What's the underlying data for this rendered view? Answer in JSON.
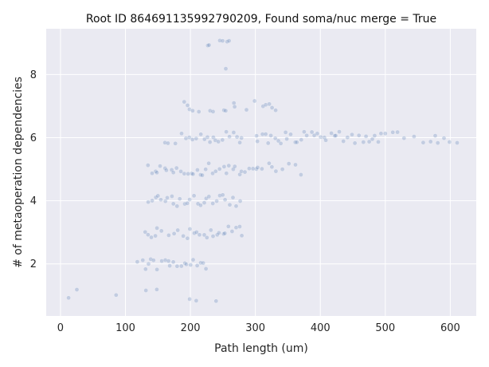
{
  "chart_data": {
    "type": "scatter",
    "title": "Root ID 864691135992790209, Found soma/nuc merge = True",
    "xlabel": "Path length (um)",
    "ylabel": "# of metaoperation dependencies",
    "xlim": [
      -22,
      640
    ],
    "ylim": [
      0.35,
      9.45
    ],
    "xticks": [
      0,
      100,
      200,
      300,
      400,
      500,
      600
    ],
    "yticks": [
      2,
      4,
      6,
      8
    ],
    "grid": true,
    "colors": {
      "background": "#eaeaf2",
      "grid": "#ffffff",
      "point": "#4c72b0"
    },
    "point_alpha": 0.25,
    "series": [
      {
        "values_by_level": [
          {
            "level": 1,
            "x": [
              12,
              25,
              85,
              130,
              150,
              200,
              207,
              240
            ]
          },
          {
            "level": 2,
            "x": [
              120,
              125,
              130,
              135,
              140,
              145,
              150,
              155,
              160,
              165,
              170,
              175,
              180,
              185,
              190,
              195,
              200,
              205,
              210,
              215,
              220,
              225
            ]
          },
          {
            "level": 3,
            "x": [
              130,
              135,
              140,
              145,
              150,
              155,
              165,
              175,
              180,
              190,
              195,
              200,
              205,
              210,
              215,
              220,
              225,
              230,
              235,
              240,
              245,
              250,
              255,
              260,
              265,
              270,
              275,
              280
            ]
          },
          {
            "level": 4,
            "x": [
              135,
              140,
              145,
              150,
              155,
              160,
              165,
              170,
              175,
              180,
              185,
              190,
              195,
              200,
              205,
              210,
              215,
              220,
              225,
              230,
              235,
              240,
              245,
              250,
              255,
              260,
              265,
              270,
              275
            ]
          },
          {
            "level": 5,
            "x": [
              135,
              140,
              145,
              150,
              155,
              160,
              165,
              170,
              175,
              180,
              185,
              190,
              195,
              200,
              205,
              210,
              215,
              220,
              225,
              230,
              235,
              240,
              245,
              250,
              255,
              260,
              265,
              270,
              275,
              280,
              285,
              290,
              295,
              300,
              305,
              310,
              320,
              325,
              330,
              340,
              350,
              360,
              370
            ]
          },
          {
            "level": 6,
            "x": [
              160,
              165,
              175,
              185,
              195,
              200,
              205,
              210,
              215,
              220,
              225,
              230,
              235,
              240,
              245,
              250,
              255,
              260,
              265,
              270,
              275,
              280,
              300,
              305,
              310,
              315,
              320,
              325,
              330,
              335,
              340,
              345,
              350,
              355,
              360,
              365,
              370,
              375,
              380,
              385,
              390,
              395,
              400,
              405,
              410,
              415,
              420,
              425,
              430,
              435,
              440,
              450,
              455,
              460,
              465,
              470,
              475,
              480,
              485,
              490,
              495,
              500,
              510,
              520,
              530,
              545,
              560,
              570,
              575,
              580,
              590,
              600,
              610
            ]
          },
          {
            "level": 7,
            "x": [
              190,
              195,
              200,
              205,
              215,
              230,
              235,
              250,
              255,
              265,
              270,
              285,
              300,
              310,
              315,
              320,
              325,
              330
            ]
          },
          {
            "level": 8,
            "x": [
              255
            ]
          },
          {
            "level": 9,
            "x": [
              225,
              230,
              245,
              250,
              255,
              258
            ]
          }
        ]
      }
    ]
  }
}
